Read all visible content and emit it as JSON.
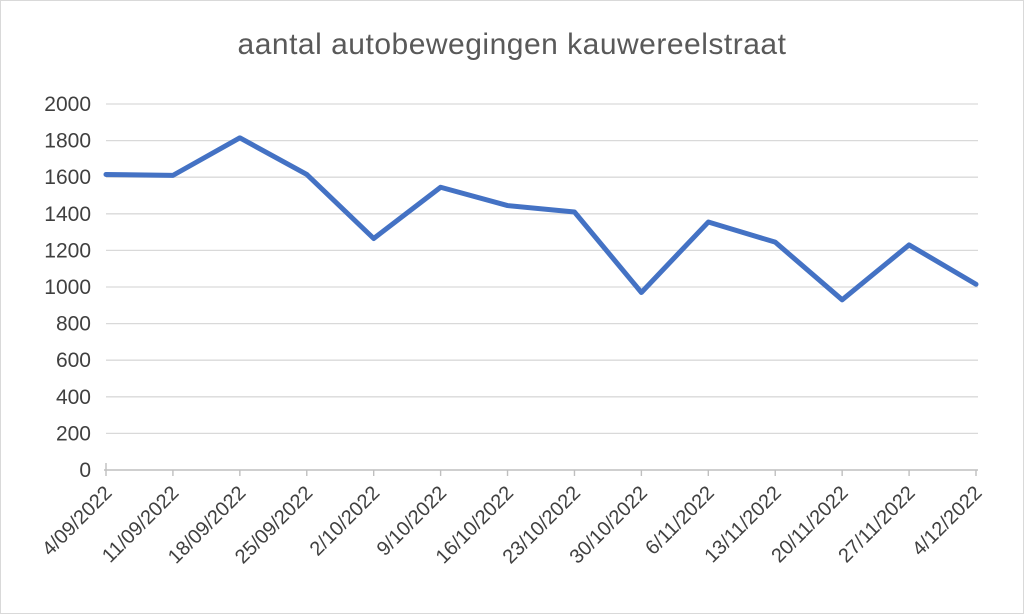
{
  "chart_data": {
    "type": "line",
    "title": "aantal autobewegingen kauwereelstraat",
    "categories": [
      "4/09/2022",
      "11/09/2022",
      "18/09/2022",
      "25/09/2022",
      "2/10/2022",
      "9/10/2022",
      "16/10/2022",
      "23/10/2022",
      "30/10/2022",
      "6/11/2022",
      "13/11/2022",
      "20/11/2022",
      "27/11/2022",
      "4/12/2022"
    ],
    "values": [
      1615,
      1610,
      1815,
      1615,
      1265,
      1545,
      1445,
      1410,
      970,
      1355,
      1245,
      930,
      1230,
      1015
    ],
    "xlabel": "",
    "ylabel": "",
    "ylim": [
      0,
      2000
    ],
    "ytick_step": 200,
    "yticks": [
      0,
      200,
      400,
      600,
      800,
      1000,
      1200,
      1400,
      1600,
      1800,
      2000
    ],
    "grid": "horizontal",
    "legend": "none",
    "colors": {
      "line": "#4472C4",
      "gridline": "#D9D9D9",
      "axis_line": "#BFBFBF",
      "tick_labels": "#404040",
      "title": "#595959",
      "chart_border": "#D9D9D9",
      "background": "#FFFFFF"
    }
  }
}
